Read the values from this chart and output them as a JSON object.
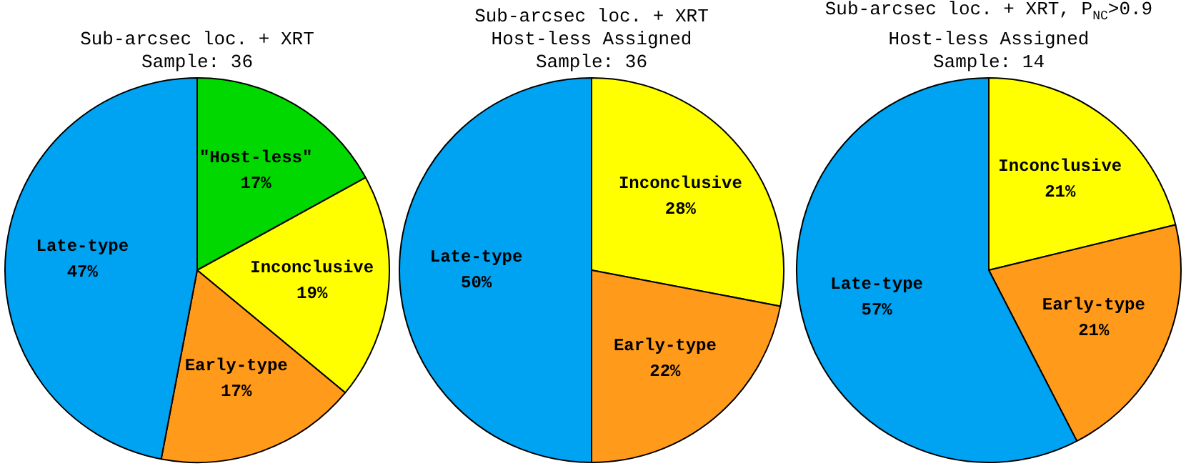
{
  "chart_data": [
    {
      "type": "pie",
      "title": "Sub-arcsec loc. + XRT",
      "subtitle": "Sample: 36",
      "categories": [
        "\"Host-less\"",
        "Inconclusive",
        "Early-type",
        "Late-type"
      ],
      "values": [
        17,
        19,
        17,
        47
      ],
      "colors": [
        "#00d800",
        "#ffff00",
        "#ff9a1a",
        "#00a2f2"
      ],
      "value_labels": [
        "17%",
        "19%",
        "17%",
        "47%"
      ]
    },
    {
      "type": "pie",
      "title": "Sub-arcsec loc. + XRT",
      "subtitle": "Host-less Assigned\nSample: 36",
      "categories": [
        "Inconclusive",
        "Early-type",
        "Late-type"
      ],
      "values": [
        28,
        22,
        50
      ],
      "colors": [
        "#ffff00",
        "#ff9a1a",
        "#00a2f2"
      ],
      "value_labels": [
        "28%",
        "22%",
        "50%"
      ]
    },
    {
      "type": "pie",
      "title": "Sub-arcsec loc. + XRT, P$_{NC}$>0.9",
      "subtitle": "Host-less Assigned\nSample: 14",
      "categories": [
        "Inconclusive",
        "Early-type",
        "Late-type"
      ],
      "values": [
        21,
        21,
        57
      ],
      "colors": [
        "#ffff00",
        "#ff9a1a",
        "#00a2f2"
      ],
      "value_labels": [
        "21%",
        "21%",
        "57%"
      ]
    }
  ]
}
